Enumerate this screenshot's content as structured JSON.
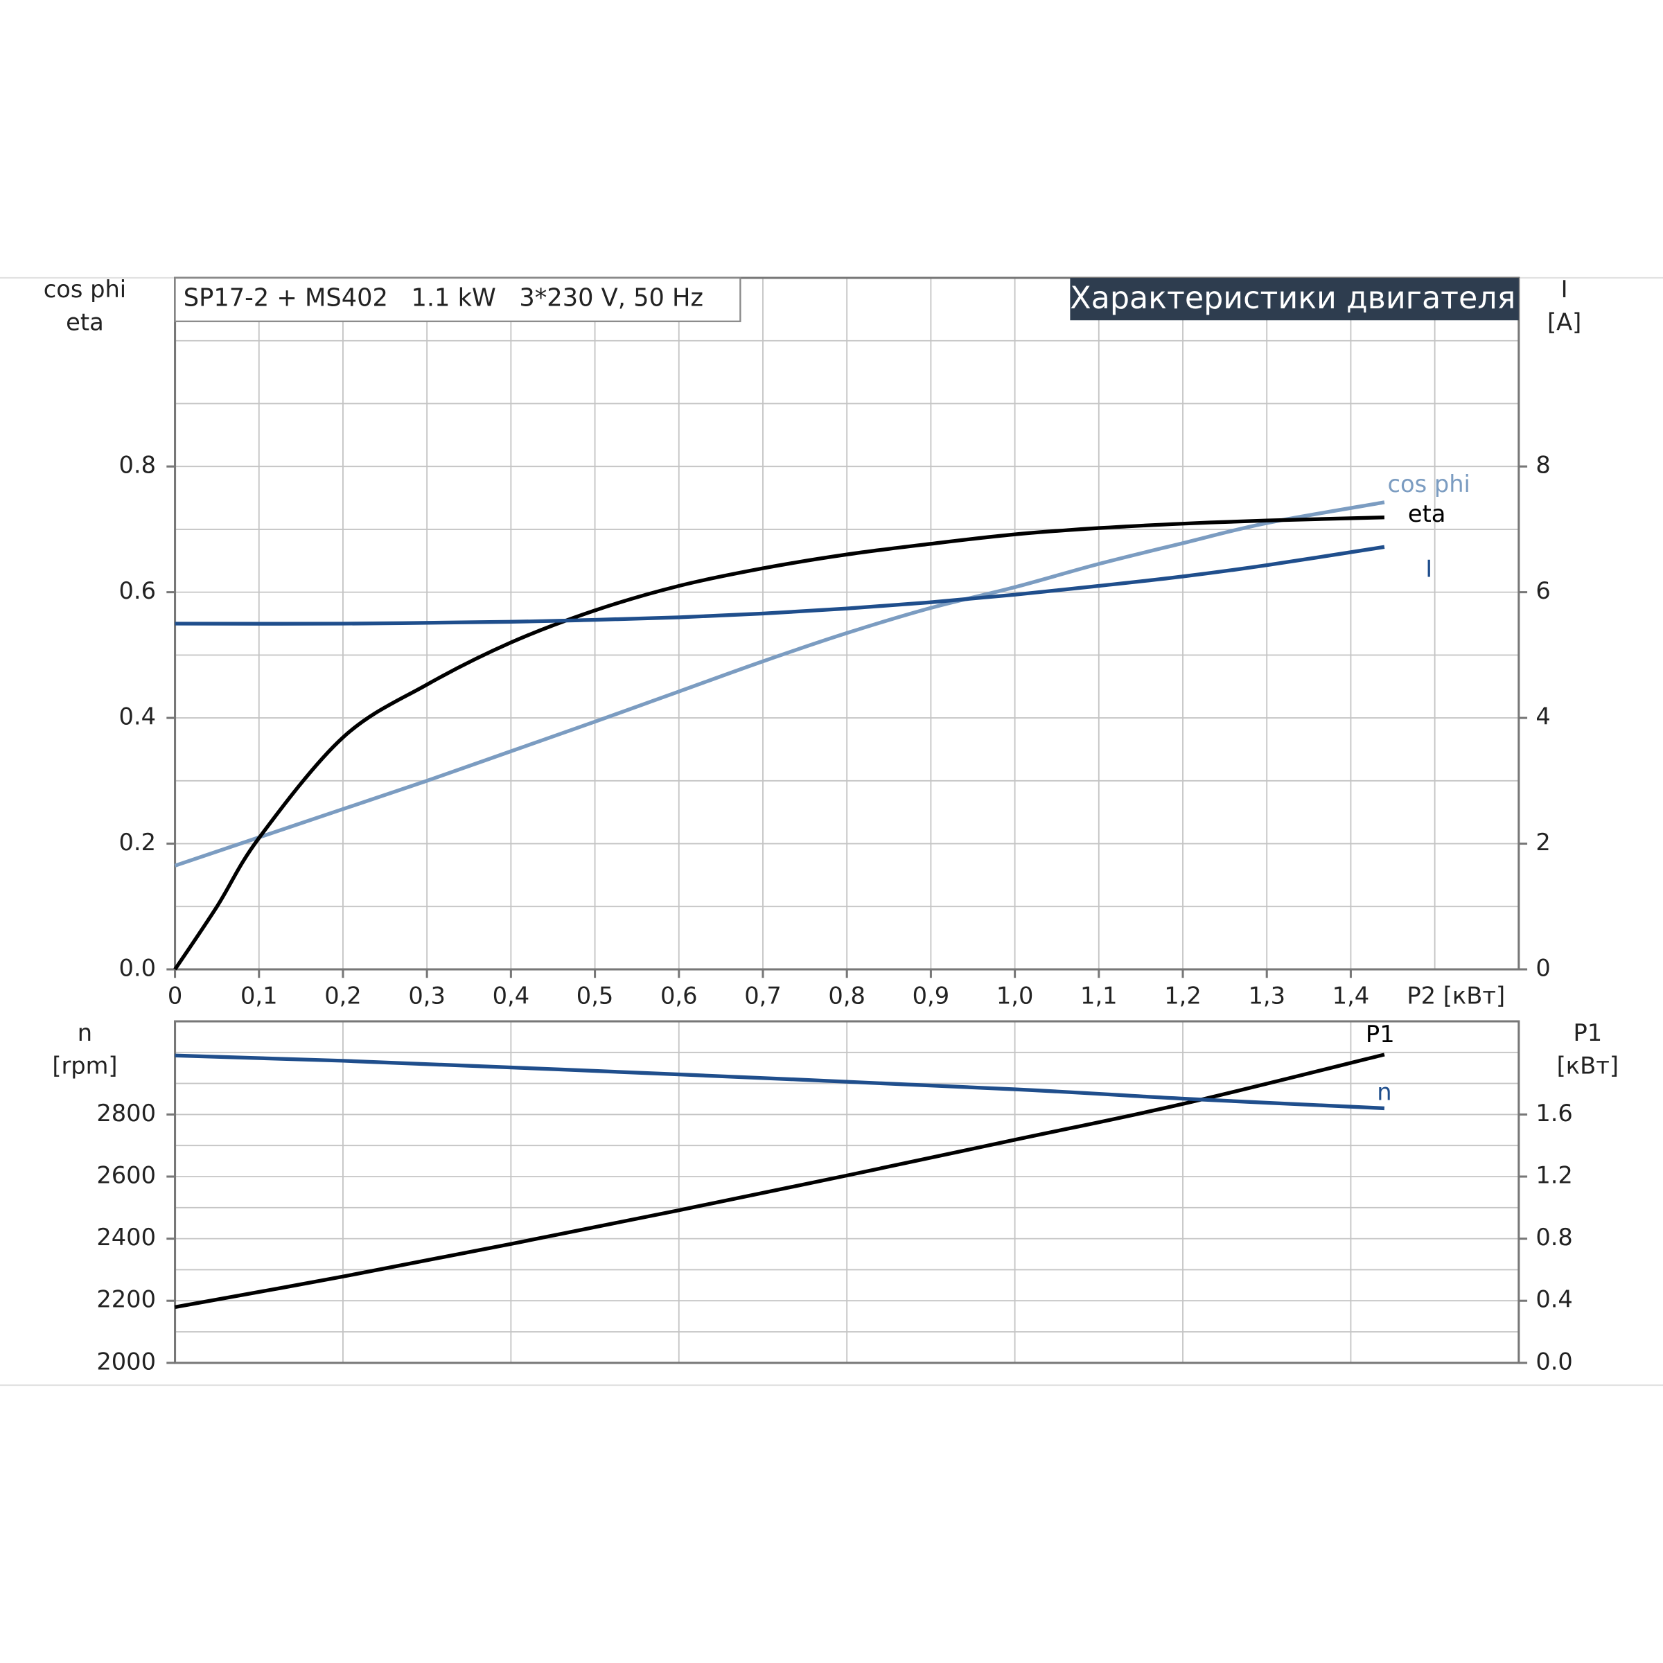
{
  "chart_data": [
    {
      "type": "line",
      "header": "SP17-2 + MS402   1.1 kW   3*230 V, 50 Hz",
      "title": "Характеристики двигателя",
      "ylabel": [
        "cos phi",
        "eta"
      ],
      "y2label": [
        "I",
        "[A]"
      ],
      "xlabel": "P2 [кВт]",
      "xlim": [
        0,
        1.6
      ],
      "xticks": [
        0,
        {
          "value": 0.1,
          "label": "0,1"
        },
        {
          "value": 0.2,
          "label": "0,2"
        },
        {
          "value": 0.3,
          "label": "0,3"
        },
        {
          "value": 0.4,
          "label": "0,4"
        },
        {
          "value": 0.5,
          "label": "0,5"
        },
        {
          "value": 0.6,
          "label": "0,6"
        },
        {
          "value": 0.7,
          "label": "0,7"
        },
        {
          "value": 0.8,
          "label": "0,8"
        },
        {
          "value": 0.9,
          "label": "0,9"
        },
        {
          "value": 1.0,
          "label": "1,0"
        },
        {
          "value": 1.1,
          "label": "1,1"
        },
        {
          "value": 1.2,
          "label": "1,2"
        },
        {
          "value": 1.3,
          "label": "1,3"
        },
        {
          "value": 1.4,
          "label": "1,4"
        }
      ],
      "x_minor_grid": [
        1.5
      ],
      "ylim": [
        0,
        1.1
      ],
      "yticks": [
        {
          "value": 0,
          "label": "0.0"
        },
        0.2,
        0.4,
        0.6,
        0.8
      ],
      "y_minor_grid": [
        0.1,
        0.3,
        0.5,
        0.7,
        0.9,
        1.0
      ],
      "y2lim": [
        0,
        11
      ],
      "y2ticks": [
        0,
        2,
        4,
        6,
        8
      ],
      "grid": true,
      "series": [
        {
          "name": "cos phi",
          "color": "#7b9cc1",
          "x": [
            0,
            0.1,
            0.2,
            0.3,
            0.4,
            0.5,
            0.6,
            0.7,
            0.8,
            0.9,
            1.0,
            1.1,
            1.2,
            1.3,
            1.44
          ],
          "values": [
            0.165,
            0.21,
            0.255,
            0.3,
            0.347,
            0.394,
            0.442,
            0.49,
            0.535,
            0.575,
            0.608,
            0.645,
            0.678,
            0.71,
            0.743
          ]
        },
        {
          "name": "eta",
          "color": "#000000",
          "x": [
            0,
            0.05,
            0.1,
            0.2,
            0.3,
            0.4,
            0.5,
            0.6,
            0.7,
            0.8,
            0.9,
            1.0,
            1.1,
            1.2,
            1.3,
            1.44
          ],
          "values": [
            0,
            0.1,
            0.209,
            0.369,
            0.453,
            0.52,
            0.571,
            0.61,
            0.638,
            0.66,
            0.677,
            0.692,
            0.702,
            0.709,
            0.714,
            0.719
          ]
        },
        {
          "name": "I",
          "color": "#1f4e8c",
          "axis": "y2",
          "x": [
            0,
            0.2,
            0.4,
            0.5,
            0.6,
            0.7,
            0.8,
            0.9,
            1.0,
            1.1,
            1.2,
            1.3,
            1.44
          ],
          "values": [
            5.5,
            5.5,
            5.53,
            5.56,
            5.6,
            5.66,
            5.74,
            5.84,
            5.96,
            6.1,
            6.25,
            6.43,
            6.72
          ]
        }
      ]
    },
    {
      "type": "line",
      "ylabel": [
        "n",
        "[rpm]"
      ],
      "y2label": [
        "P1",
        "[кВт]"
      ],
      "xlim": [
        0,
        1.6
      ],
      "x_minor_grid": [
        0.2,
        0.4,
        0.6,
        0.8,
        1.0,
        1.2,
        1.4
      ],
      "ylim": [
        2000,
        3100
      ],
      "yticks": [
        2000,
        2200,
        2400,
        2600,
        2800
      ],
      "y_minor_grid": [
        2100,
        2300,
        2500,
        2700,
        2900,
        3000
      ],
      "y2lim": [
        0,
        2.2
      ],
      "y2ticks": [
        {
          "value": 0,
          "label": "0.0"
        },
        0.4,
        0.8,
        1.2,
        1.6
      ],
      "grid": true,
      "series": [
        {
          "name": "P1",
          "color": "#000000",
          "axis": "y2",
          "x": [
            0,
            0.2,
            0.4,
            0.6,
            0.8,
            1.0,
            1.2,
            1.44
          ],
          "values": [
            0.359,
            0.556,
            0.766,
            0.983,
            1.207,
            1.437,
            1.668,
            1.986
          ]
        },
        {
          "name": "n",
          "color": "#1f4e8c",
          "x": [
            0,
            0.2,
            0.6,
            1.0,
            1.2,
            1.44
          ],
          "values": [
            2990,
            2973,
            2929,
            2881,
            2851,
            2820
          ]
        }
      ]
    }
  ]
}
